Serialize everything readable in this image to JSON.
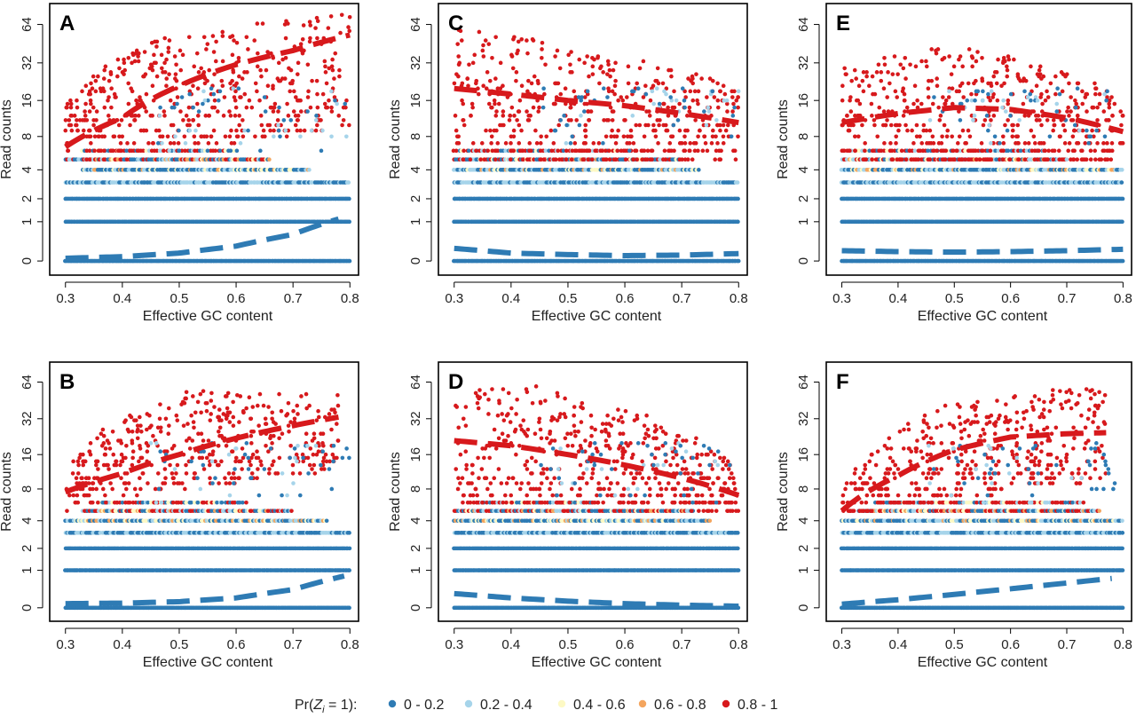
{
  "figure": {
    "legend": {
      "title_prefix": "Pr(",
      "title_var": "Z",
      "title_sub": "i",
      "title_suffix": " = 1):",
      "items": [
        {
          "label": "0 - 0.2",
          "color": "#2e7bb4"
        },
        {
          "label": "0.2 - 0.4",
          "color": "#a6d4ea"
        },
        {
          "label": "0.4 - 0.6",
          "color": "#fdf9c4"
        },
        {
          "label": "0.6 - 0.8",
          "color": "#f4a55e"
        },
        {
          "label": "0.8 - 1",
          "color": "#d7191c"
        }
      ]
    }
  },
  "chart_data": [
    {
      "panel": "A",
      "type": "scatter",
      "xlabel": "Effective GC content",
      "ylabel": "Read counts",
      "xlim": [
        0.3,
        0.8
      ],
      "xticks": [
        "0.3",
        "0.4",
        "0.5",
        "0.6",
        "0.7",
        "0.8"
      ],
      "yticks": [
        "0",
        "1",
        "2",
        "4",
        "8",
        "16",
        "32",
        "64"
      ],
      "yscale": "log(1+y)",
      "high_fit": [
        [
          0.3,
          6.5
        ],
        [
          0.4,
          11.5
        ],
        [
          0.5,
          21
        ],
        [
          0.6,
          31
        ],
        [
          0.7,
          40
        ],
        [
          0.8,
          53
        ]
      ],
      "low_fit": [
        [
          0.3,
          0.05
        ],
        [
          0.4,
          0.08
        ],
        [
          0.5,
          0.15
        ],
        [
          0.6,
          0.3
        ],
        [
          0.7,
          0.6
        ],
        [
          0.78,
          1.1
        ]
      ],
      "bands": {
        "3": [
          0.3,
          0.8
        ],
        "4": [
          0.33,
          0.73
        ],
        "5": [
          0.3,
          0.66
        ],
        "6": [
          0.33,
          0.6
        ]
      },
      "red_range": [
        0.3,
        0.8
      ],
      "red_low": [
        [
          0.3,
          5
        ],
        [
          0.8,
          9
        ]
      ],
      "red_high": [
        [
          0.3,
          15
        ],
        [
          0.45,
          50
        ],
        [
          0.8,
          80
        ]
      ],
      "red_count": 500
    },
    {
      "panel": "B",
      "type": "scatter",
      "xlabel": "Effective GC content",
      "ylabel": "Read counts",
      "xlim": [
        0.3,
        0.8
      ],
      "xticks": [
        "0.3",
        "0.4",
        "0.5",
        "0.6",
        "0.7",
        "0.8"
      ],
      "yticks": [
        "0",
        "1",
        "2",
        "4",
        "8",
        "16",
        "32",
        "64"
      ],
      "yscale": "log(1+y)",
      "high_fit": [
        [
          0.3,
          7.5
        ],
        [
          0.4,
          11
        ],
        [
          0.5,
          16
        ],
        [
          0.6,
          22
        ],
        [
          0.7,
          28
        ],
        [
          0.78,
          33
        ]
      ],
      "low_fit": [
        [
          0.3,
          0.08
        ],
        [
          0.4,
          0.09
        ],
        [
          0.5,
          0.12
        ],
        [
          0.6,
          0.2
        ],
        [
          0.7,
          0.4
        ],
        [
          0.79,
          0.8
        ]
      ],
      "bands": {
        "3": [
          0.3,
          0.8
        ],
        "4": [
          0.3,
          0.76
        ],
        "5": [
          0.33,
          0.7
        ],
        "6": [
          0.36,
          0.62
        ]
      },
      "red_range": [
        0.3,
        0.78
      ],
      "red_low": [
        [
          0.3,
          5
        ],
        [
          0.78,
          12
        ]
      ],
      "red_high": [
        [
          0.3,
          12
        ],
        [
          0.5,
          55
        ],
        [
          0.78,
          50
        ]
      ],
      "red_count": 450
    },
    {
      "panel": "C",
      "type": "scatter",
      "xlabel": "Effective GC content",
      "ylabel": "Read counts",
      "xlim": [
        0.3,
        0.8
      ],
      "xticks": [
        "0.3",
        "0.4",
        "0.5",
        "0.6",
        "0.7",
        "0.8"
      ],
      "yticks": [
        "0",
        "1",
        "2",
        "4",
        "8",
        "16",
        "32",
        "64"
      ],
      "yscale": "log(1+y)",
      "high_fit": [
        [
          0.3,
          20
        ],
        [
          0.4,
          18
        ],
        [
          0.5,
          16
        ],
        [
          0.6,
          14.5
        ],
        [
          0.7,
          12.5
        ],
        [
          0.8,
          10.5
        ]
      ],
      "low_fit": [
        [
          0.3,
          0.25
        ],
        [
          0.4,
          0.15
        ],
        [
          0.5,
          0.12
        ],
        [
          0.6,
          0.1
        ],
        [
          0.7,
          0.11
        ],
        [
          0.8,
          0.14
        ]
      ],
      "bands": {
        "3": [
          0.3,
          0.8
        ],
        "4": [
          0.3,
          0.73
        ],
        "5": [
          0.3,
          0.7
        ],
        "6": [
          0.3,
          0.6
        ]
      },
      "red_range": [
        0.3,
        0.8
      ],
      "red_low": [
        [
          0.3,
          5
        ],
        [
          0.8,
          5
        ]
      ],
      "red_high": [
        [
          0.3,
          60
        ],
        [
          0.5,
          45
        ],
        [
          0.8,
          20
        ]
      ],
      "red_count": 500
    },
    {
      "panel": "D",
      "type": "scatter",
      "xlabel": "Effective GC content",
      "ylabel": "Read counts",
      "xlim": [
        0.3,
        0.8
      ],
      "xticks": [
        "0.3",
        "0.4",
        "0.5",
        "0.6",
        "0.7",
        "0.8"
      ],
      "yticks": [
        "0",
        "1",
        "2",
        "4",
        "8",
        "16",
        "32",
        "64"
      ],
      "yscale": "log(1+y)",
      "high_fit": [
        [
          0.3,
          21
        ],
        [
          0.4,
          19
        ],
        [
          0.5,
          16
        ],
        [
          0.6,
          13
        ],
        [
          0.7,
          10
        ],
        [
          0.8,
          7
        ]
      ],
      "low_fit": [
        [
          0.3,
          0.3
        ],
        [
          0.4,
          0.2
        ],
        [
          0.5,
          0.13
        ],
        [
          0.6,
          0.08
        ],
        [
          0.7,
          0.05
        ],
        [
          0.8,
          0.03
        ]
      ],
      "bands": {
        "3": [
          0.3,
          0.8
        ],
        "4": [
          0.3,
          0.75
        ],
        "5": [
          0.3,
          0.72
        ],
        "6": [
          0.33,
          0.55
        ]
      },
      "red_range": [
        0.3,
        0.8
      ],
      "red_low": [
        [
          0.3,
          6
        ],
        [
          0.8,
          5
        ]
      ],
      "red_high": [
        [
          0.3,
          55
        ],
        [
          0.45,
          60
        ],
        [
          0.8,
          12
        ]
      ],
      "red_count": 500
    },
    {
      "panel": "E",
      "type": "scatter",
      "xlabel": "Effective GC content",
      "ylabel": "Read counts",
      "xlim": [
        0.3,
        0.8
      ],
      "xticks": [
        "0.3",
        "0.4",
        "0.5",
        "0.6",
        "0.7",
        "0.8"
      ],
      "yticks": [
        "0",
        "1",
        "2",
        "4",
        "8",
        "16",
        "32",
        "64"
      ],
      "yscale": "log(1+y)",
      "high_fit": [
        [
          0.3,
          10.5
        ],
        [
          0.4,
          12.5
        ],
        [
          0.5,
          14
        ],
        [
          0.6,
          13.5
        ],
        [
          0.7,
          11.5
        ],
        [
          0.8,
          8.8
        ]
      ],
      "low_fit": [
        [
          0.3,
          0.2
        ],
        [
          0.4,
          0.18
        ],
        [
          0.5,
          0.17
        ],
        [
          0.6,
          0.18
        ],
        [
          0.7,
          0.2
        ],
        [
          0.8,
          0.23
        ]
      ],
      "bands": {
        "3": [
          0.3,
          0.8
        ],
        "4": [
          0.3,
          0.8
        ],
        "5": [
          0.3,
          0.7
        ],
        "6": [
          0.3,
          0.66
        ]
      },
      "red_range": [
        0.3,
        0.8
      ],
      "red_low": [
        [
          0.3,
          5
        ],
        [
          0.8,
          5
        ]
      ],
      "red_high": [
        [
          0.3,
          30
        ],
        [
          0.5,
          45
        ],
        [
          0.8,
          18
        ]
      ],
      "red_count": 500
    },
    {
      "panel": "F",
      "type": "scatter",
      "xlabel": "Effective GC content",
      "ylabel": "Read counts",
      "xlim": [
        0.3,
        0.8
      ],
      "xticks": [
        "0.3",
        "0.4",
        "0.5",
        "0.6",
        "0.7",
        "0.8"
      ],
      "yticks": [
        "0",
        "1",
        "2",
        "4",
        "8",
        "16",
        "32",
        "64"
      ],
      "yscale": "log(1+y)",
      "high_fit": [
        [
          0.3,
          5
        ],
        [
          0.4,
          10.5
        ],
        [
          0.5,
          17.5
        ],
        [
          0.6,
          22.5
        ],
        [
          0.7,
          24
        ],
        [
          0.77,
          24.5
        ]
      ],
      "low_fit": [
        [
          0.3,
          0.07
        ],
        [
          0.4,
          0.16
        ],
        [
          0.5,
          0.28
        ],
        [
          0.6,
          0.42
        ],
        [
          0.7,
          0.58
        ],
        [
          0.78,
          0.72
        ]
      ],
      "bands": {
        "3": [
          0.3,
          0.8
        ],
        "4": [
          0.3,
          0.8
        ],
        "5": [
          0.33,
          0.76
        ],
        "6": [
          0.36,
          0.73
        ]
      },
      "red_range": [
        0.3,
        0.77
      ],
      "red_low": [
        [
          0.3,
          4
        ],
        [
          0.77,
          10
        ]
      ],
      "red_high": [
        [
          0.3,
          8
        ],
        [
          0.5,
          45
        ],
        [
          0.75,
          60
        ]
      ],
      "red_count": 450
    }
  ]
}
